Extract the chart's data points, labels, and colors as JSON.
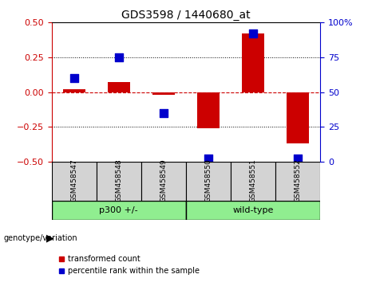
{
  "title": "GDS3598 / 1440680_at",
  "samples": [
    "GSM458547",
    "GSM458548",
    "GSM458549",
    "GSM458550",
    "GSM458551",
    "GSM458552"
  ],
  "red_values": [
    0.02,
    0.07,
    -0.02,
    -0.26,
    0.42,
    -0.37
  ],
  "blue_values_pct": [
    60,
    75,
    35,
    2,
    92,
    2
  ],
  "ylim_left": [
    -0.5,
    0.5
  ],
  "ylim_right": [
    0,
    100
  ],
  "yticks_left": [
    -0.5,
    -0.25,
    0.0,
    0.25,
    0.5
  ],
  "yticks_right": [
    0,
    25,
    50,
    75,
    100
  ],
  "left_color": "#cc0000",
  "right_color": "#0000cc",
  "bar_width": 0.5,
  "marker_size": 48,
  "bg_color": "#ffffff",
  "legend_red": "transformed count",
  "legend_blue": "percentile rank within the sample",
  "genotype_label": "genotype/variation",
  "groups": [
    {
      "label": "p300 +/-",
      "start": 0,
      "end": 2
    },
    {
      "label": "wild-type",
      "start": 3,
      "end": 5
    }
  ],
  "group_color": "#90ee90",
  "sample_box_color": "#d3d3d3"
}
